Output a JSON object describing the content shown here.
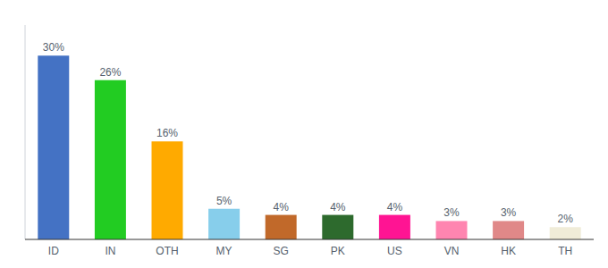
{
  "chart_data": {
    "type": "bar",
    "categories": [
      "ID",
      "IN",
      "OTH",
      "MY",
      "SG",
      "PK",
      "US",
      "VN",
      "HK",
      "TH"
    ],
    "values": [
      30,
      26,
      16,
      5,
      4,
      4,
      4,
      3,
      3,
      2
    ],
    "value_labels": [
      "30%",
      "26%",
      "16%",
      "5%",
      "4%",
      "4%",
      "4%",
      "3%",
      "3%",
      "2%"
    ],
    "colors": [
      "#4472c4",
      "#22cc22",
      "#ffaa00",
      "#87ceeb",
      "#c1692a",
      "#2d6a2d",
      "#ff1493",
      "#ff85b0",
      "#e08888",
      "#f0ecd8"
    ],
    "ylim": [
      0,
      35
    ],
    "yticks": [],
    "data_labels": true,
    "tick_labels": "x"
  }
}
